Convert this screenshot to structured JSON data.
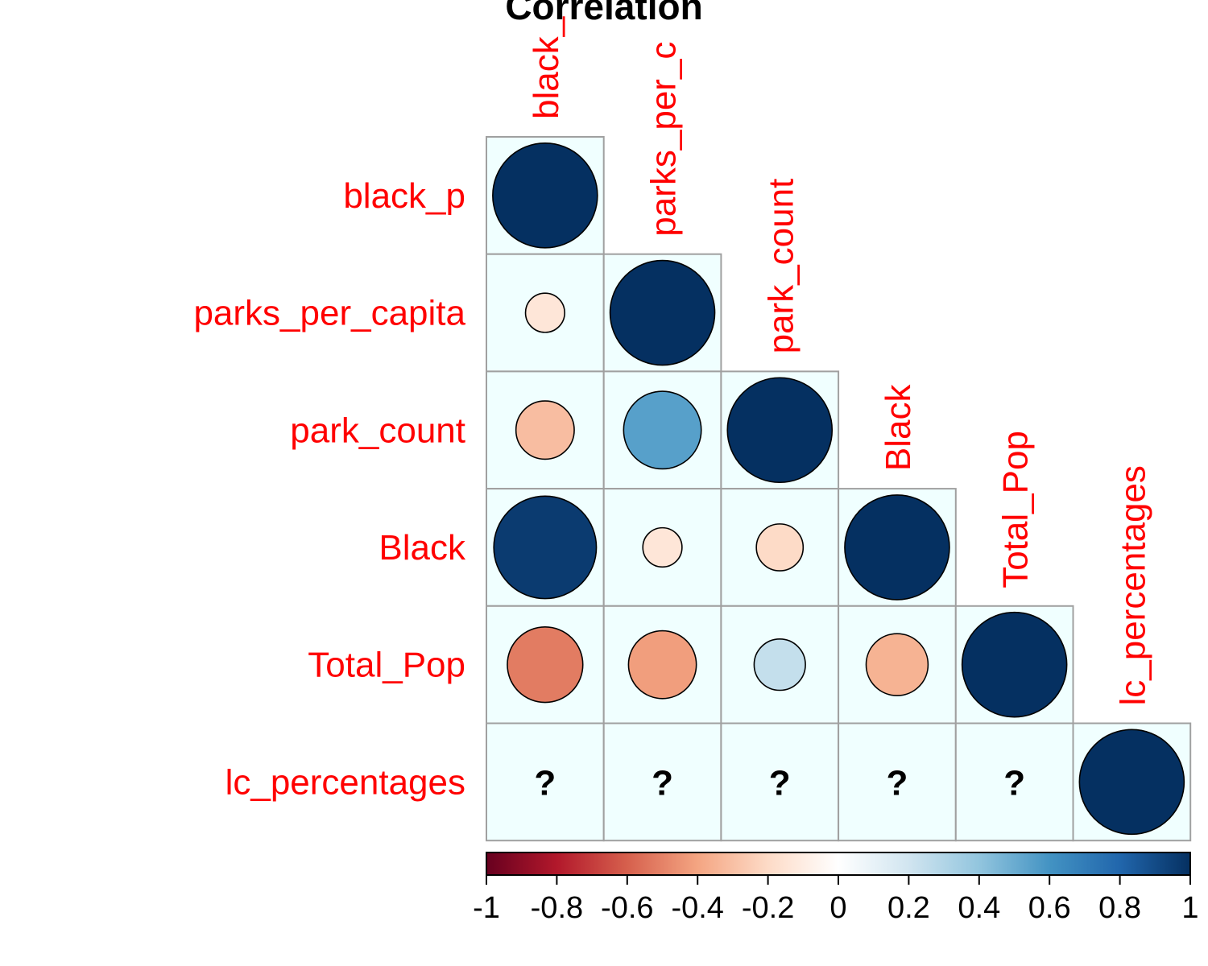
{
  "chart_data": {
    "type": "heatmap",
    "title": "Correlation",
    "variables": [
      "black_p",
      "parks_per_capita",
      "park_count",
      "Black",
      "Total_Pop",
      "lc_percentages"
    ],
    "column_labels": [
      "black_",
      "parks_per_c",
      "park_count",
      "Black",
      "Total_Pop",
      "lc_percentages"
    ],
    "matrix": [
      [
        1.0,
        null,
        null,
        null,
        null,
        null
      ],
      [
        -0.14,
        1.0,
        null,
        null,
        null,
        null
      ],
      [
        -0.31,
        0.55,
        1.0,
        null,
        null,
        null
      ],
      [
        0.96,
        -0.14,
        -0.2,
        1.0,
        null,
        null
      ],
      [
        -0.52,
        -0.42,
        0.24,
        -0.35,
        1.0,
        null
      ],
      [
        null,
        null,
        null,
        null,
        null,
        1.0
      ]
    ],
    "missing_symbol": "?",
    "colorbar": {
      "range": [
        -1,
        1
      ],
      "ticks": [
        "-1",
        "-0.8",
        "-0.6",
        "-0.4",
        "-0.2",
        "0",
        "0.2",
        "0.4",
        "0.6",
        "0.8",
        "1"
      ],
      "colors": [
        "#67001f",
        "#b2182b",
        "#d6604d",
        "#f4a582",
        "#fddbc7",
        "#ffffff",
        "#d1e5f0",
        "#92c5de",
        "#4393c3",
        "#2166ac",
        "#053061"
      ]
    },
    "cell_background": "#f0ffff",
    "grid_color": "#a0a0a0",
    "label_color": "#ff0000"
  }
}
